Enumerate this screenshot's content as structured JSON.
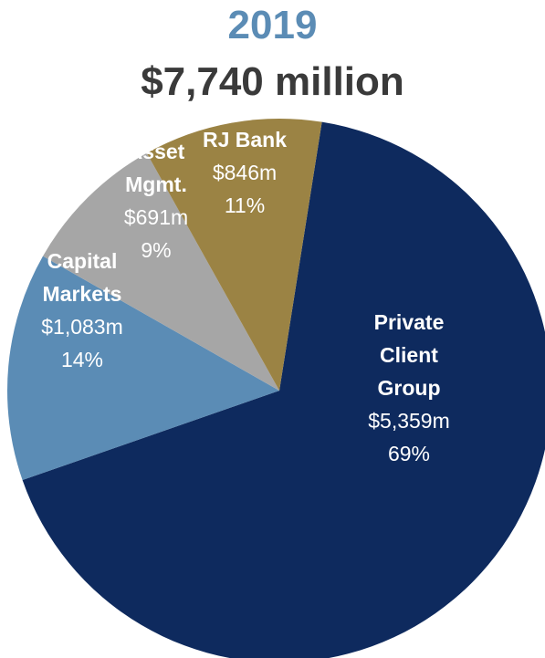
{
  "header": {
    "year": "2019",
    "total": "$7,740 million"
  },
  "colors": {
    "year": "#5b8cb5",
    "total": "#3a3a3a"
  },
  "chart_data": {
    "type": "pie",
    "start_angle_deg": 9,
    "direction": "clockwise",
    "slices": [
      {
        "name_lines": [
          "Private",
          "Client",
          "Group"
        ],
        "value_label": "$5,359m",
        "percent_label": "69%",
        "value": 5359,
        "color": "#0e2a5e"
      },
      {
        "name_lines": [
          "Capital",
          "Markets"
        ],
        "value_label": "$1,083m",
        "percent_label": "14%",
        "value": 1083,
        "color": "#5b8cb5"
      },
      {
        "name_lines": [
          "Asset",
          "Mgmt."
        ],
        "value_label": "$691m",
        "percent_label": "9%",
        "value": 691,
        "color": "#a6a6a6"
      },
      {
        "name_lines": [
          "RJ Bank"
        ],
        "value_label": "$846m",
        "percent_label": "11%",
        "value": 846,
        "color": "#9b8344"
      }
    ]
  }
}
